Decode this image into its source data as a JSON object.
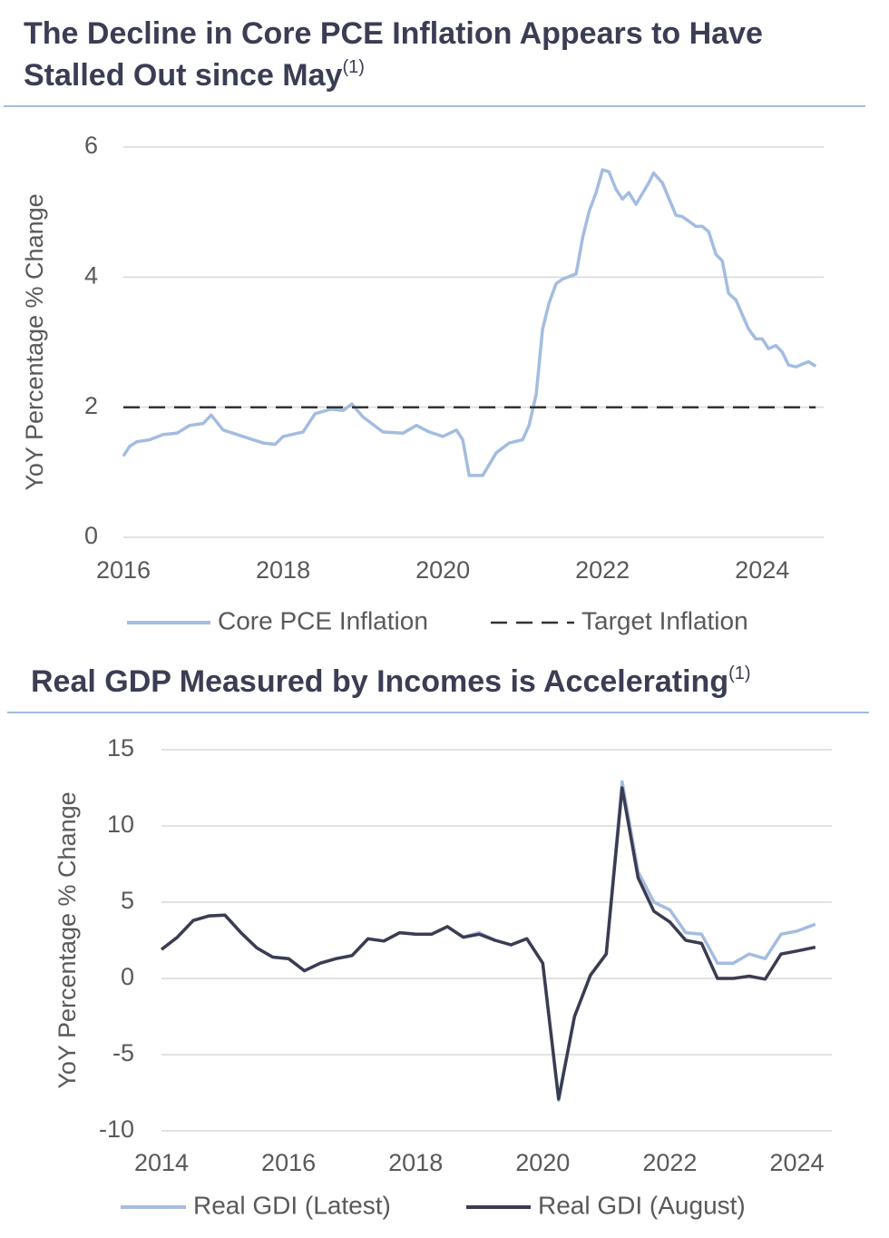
{
  "chart_data": [
    {
      "type": "line",
      "title": "The Decline in Core PCE Inflation Appears to Have Stalled Out since May",
      "title_footnote": "(1)",
      "y_label": "YoY Percentage % Change",
      "x": [
        2016.0,
        2016.08,
        2016.17,
        2016.33,
        2016.5,
        2016.67,
        2016.83,
        2017.0,
        2017.1,
        2017.25,
        2017.5,
        2017.75,
        2017.9,
        2018.0,
        2018.25,
        2018.4,
        2018.6,
        2018.75,
        2018.86,
        2019.0,
        2019.25,
        2019.5,
        2019.67,
        2019.83,
        2020.0,
        2020.17,
        2020.25,
        2020.33,
        2020.5,
        2020.67,
        2020.83,
        2021.0,
        2021.08,
        2021.17,
        2021.25,
        2021.33,
        2021.42,
        2021.5,
        2021.67,
        2021.75,
        2021.83,
        2021.92,
        2022.0,
        2022.08,
        2022.17,
        2022.25,
        2022.33,
        2022.42,
        2022.58,
        2022.64,
        2022.75,
        2022.92,
        2023.0,
        2023.17,
        2023.25,
        2023.33,
        2023.42,
        2023.5,
        2023.58,
        2023.67,
        2023.83,
        2023.92,
        2024.0,
        2024.08,
        2024.17,
        2024.25,
        2024.33,
        2024.42,
        2024.58,
        2024.67
      ],
      "series": [
        {
          "name": "Core PCE Inflation",
          "color": "#a3bce0",
          "line_style": "solid",
          "values": [
            1.25,
            1.4,
            1.47,
            1.5,
            1.58,
            1.6,
            1.72,
            1.75,
            1.88,
            1.65,
            1.55,
            1.45,
            1.43,
            1.55,
            1.62,
            1.9,
            1.97,
            1.95,
            2.05,
            1.85,
            1.62,
            1.6,
            1.72,
            1.62,
            1.55,
            1.65,
            1.5,
            0.95,
            0.95,
            1.3,
            1.45,
            1.5,
            1.72,
            2.2,
            3.2,
            3.6,
            3.9,
            3.97,
            4.05,
            4.6,
            5.0,
            5.3,
            5.65,
            5.62,
            5.35,
            5.2,
            5.3,
            5.12,
            5.45,
            5.6,
            5.45,
            4.95,
            4.93,
            4.78,
            4.78,
            4.7,
            4.35,
            4.25,
            3.75,
            3.65,
            3.2,
            3.05,
            3.05,
            2.9,
            2.95,
            2.85,
            2.65,
            2.62,
            2.7,
            2.63
          ]
        },
        {
          "name": "Target Inflation",
          "color": "#333333",
          "line_style": "dashed",
          "x": [
            2016.0,
            2024.67
          ],
          "values": [
            2,
            2
          ]
        }
      ],
      "xlim": [
        2016,
        2024.77
      ],
      "xticks": [
        2016,
        2018,
        2020,
        2022,
        2024
      ],
      "ylim": [
        0,
        6
      ],
      "yticks": [
        0,
        2,
        4,
        6
      ],
      "grid": true,
      "legend": "bottom"
    },
    {
      "type": "line",
      "title": "Real GDP Measured by Incomes is Accelerating",
      "title_footnote": "(1)",
      "y_label": "YoY Percentage % Change",
      "x": [
        2014.0,
        2014.25,
        2014.5,
        2014.75,
        2015.0,
        2015.25,
        2015.5,
        2015.75,
        2016.0,
        2016.25,
        2016.5,
        2016.75,
        2017.0,
        2017.25,
        2017.5,
        2017.75,
        2018.0,
        2018.25,
        2018.5,
        2018.75,
        2019.0,
        2019.25,
        2019.5,
        2019.75,
        2020.0,
        2020.25,
        2020.5,
        2020.75,
        2021.0,
        2021.25,
        2021.5,
        2021.75,
        2022.0,
        2022.25,
        2022.5,
        2022.75,
        2023.0,
        2023.25,
        2023.5,
        2023.75,
        2024.0,
        2024.29
      ],
      "series": [
        {
          "name": "Real GDI (Latest)",
          "color": "#a3bce0",
          "line_style": "solid",
          "values": [
            1.9,
            2.7,
            3.8,
            4.1,
            4.15,
            3.0,
            2.0,
            1.4,
            1.3,
            0.5,
            1.0,
            1.3,
            1.5,
            2.6,
            2.45,
            3.0,
            2.9,
            2.9,
            3.4,
            2.7,
            3.0,
            2.5,
            2.2,
            2.6,
            1.0,
            -8.0,
            -2.5,
            0.2,
            1.6,
            12.9,
            7.0,
            5.0,
            4.5,
            3.0,
            2.9,
            1.0,
            1.0,
            1.6,
            1.3,
            2.9,
            3.1,
            3.55
          ]
        },
        {
          "name": "Real GDI (August)",
          "color": "#3b3c52",
          "line_style": "solid",
          "values": [
            1.9,
            2.7,
            3.8,
            4.1,
            4.15,
            3.0,
            2.0,
            1.4,
            1.3,
            0.5,
            1.0,
            1.3,
            1.5,
            2.6,
            2.45,
            3.0,
            2.9,
            2.9,
            3.4,
            2.7,
            2.9,
            2.5,
            2.2,
            2.6,
            1.0,
            -7.9,
            -2.5,
            0.2,
            1.6,
            12.5,
            6.6,
            4.4,
            3.7,
            2.5,
            2.3,
            0.0,
            0.0,
            0.15,
            -0.05,
            1.6,
            1.8,
            2.05
          ]
        }
      ],
      "xlim": [
        2014,
        2024.55
      ],
      "xticks": [
        2014,
        2016,
        2018,
        2020,
        2022,
        2024
      ],
      "ylim": [
        -10,
        15
      ],
      "yticks": [
        -10,
        -5,
        0,
        5,
        10,
        15
      ],
      "grid": true,
      "legend": "bottom"
    }
  ]
}
